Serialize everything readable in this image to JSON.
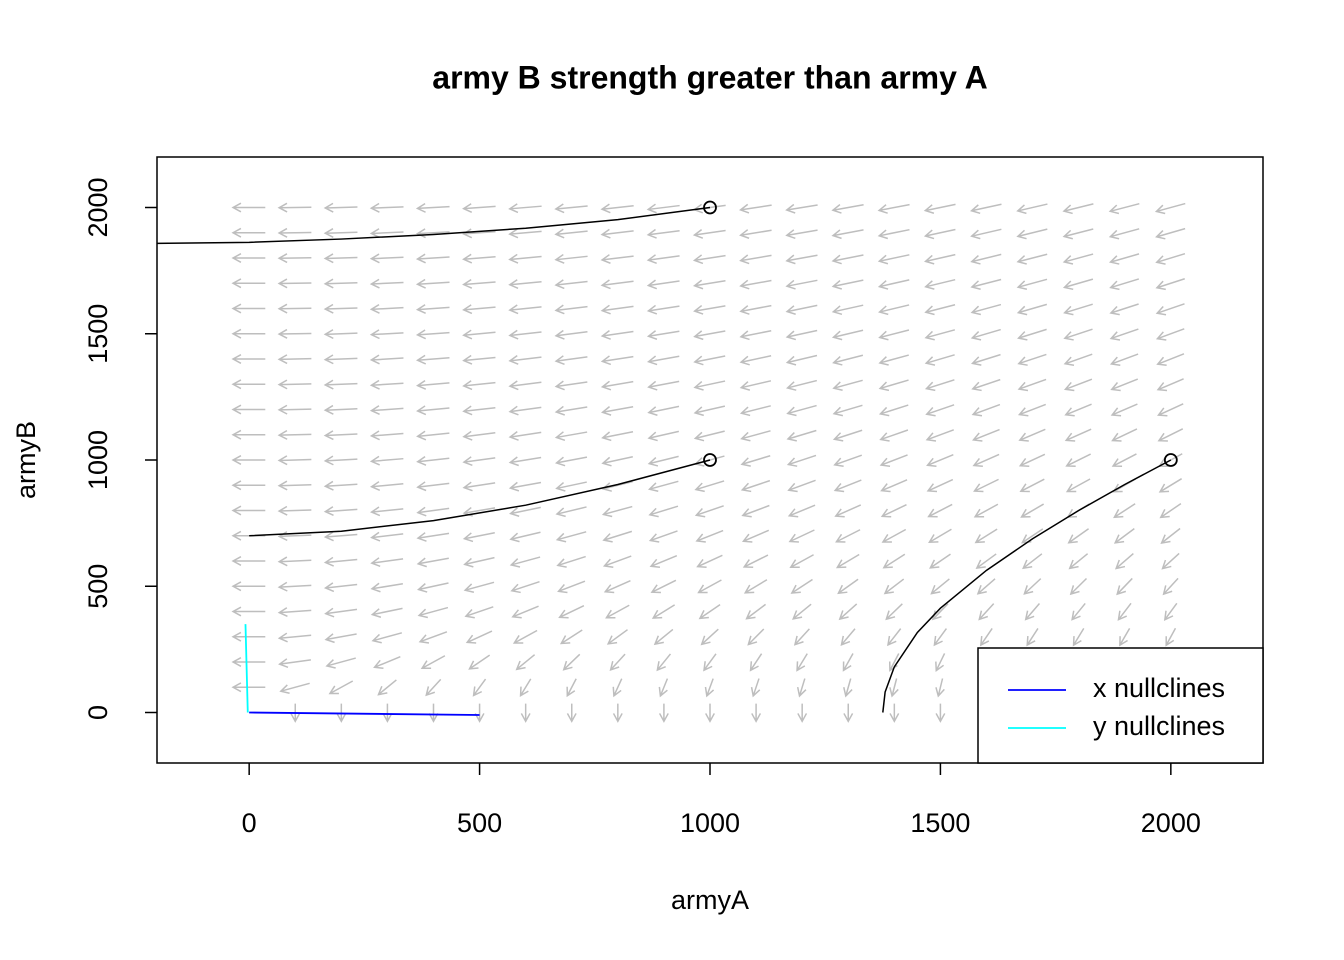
{
  "chart_data": {
    "type": "phase",
    "title": "army B strength greater than army A",
    "xlabel": "armyA",
    "ylabel": "armyB",
    "xlim": [
      -200,
      2200
    ],
    "ylim": [
      -200,
      2200
    ],
    "xticks": [
      0,
      500,
      1000,
      1500,
      2000
    ],
    "yticks": [
      0,
      500,
      1000,
      1500,
      2000
    ],
    "field": {
      "x": [
        0,
        100,
        200,
        300,
        400,
        500,
        600,
        700,
        800,
        900,
        1000,
        1100,
        1200,
        1300,
        1400,
        1500,
        1600,
        1700,
        1800,
        1900,
        2000
      ],
      "y": [
        0,
        100,
        200,
        300,
        400,
        500,
        600,
        700,
        800,
        900,
        1000,
        1100,
        1200,
        1300,
        1400,
        1500,
        1600,
        1700,
        1800,
        1900,
        2000
      ],
      "dx_per_y": -1,
      "dy_per_x": -0.5,
      "color": "#bebebe"
    },
    "trajectories": [
      {
        "color": "#000000",
        "x": [
          1000,
          800,
          600,
          400,
          200,
          0,
          -200
        ],
        "y": [
          2000,
          1952,
          1918,
          1893,
          1875,
          1862,
          1858
        ]
      },
      {
        "color": "#000000",
        "x": [
          1000,
          800,
          600,
          400,
          200,
          0
        ],
        "y": [
          1000,
          903,
          821,
          760,
          718,
          700
        ]
      },
      {
        "color": "#000000",
        "x": [
          2000,
          1900,
          1800,
          1700,
          1600,
          1500,
          1450,
          1400,
          1380,
          1375
        ],
        "y": [
          1000,
          903,
          800,
          688,
          563,
          413,
          317,
          181,
          81,
          0
        ]
      }
    ],
    "series": [
      {
        "name": "x nullclines",
        "color": "#0000ff",
        "x": [
          0,
          500
        ],
        "y": [
          0,
          -10
        ]
      },
      {
        "name": "y nullclines",
        "color": "#00ffff",
        "x": [
          -8,
          -3
        ],
        "y": [
          350,
          0
        ]
      }
    ],
    "legend": "bottom-right"
  }
}
